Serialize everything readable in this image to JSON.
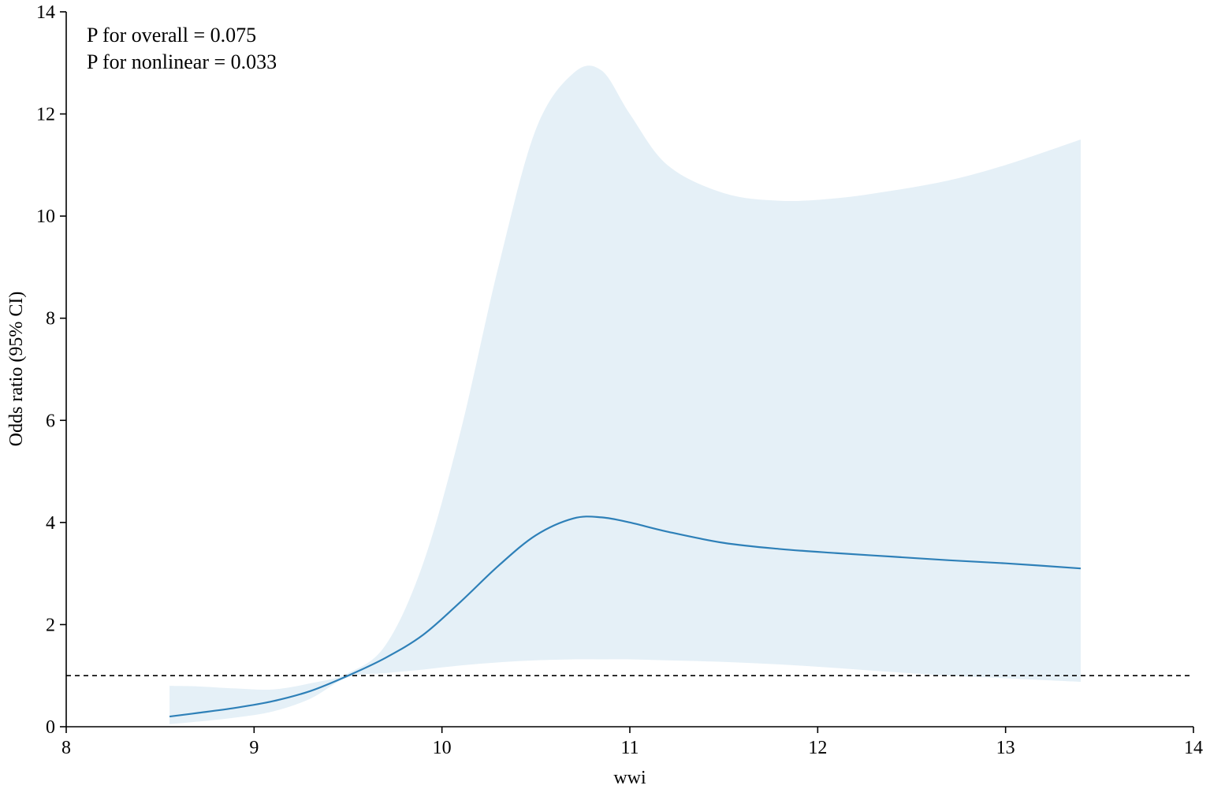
{
  "chart_data": {
    "type": "line",
    "title": "",
    "xlabel": "wwi",
    "ylabel": "Odds ratio (95% CI)",
    "xlim": [
      8,
      14
    ],
    "ylim": [
      0,
      14
    ],
    "x_ticks": [
      "8",
      "9",
      "10",
      "11",
      "12",
      "13",
      "14"
    ],
    "y_ticks": [
      "0",
      "2",
      "4",
      "6",
      "8",
      "10",
      "12",
      "14"
    ],
    "annotations": [
      "P for overall = 0.075",
      "P for nonlinear = 0.033"
    ],
    "reference_line": {
      "y": 1,
      "style": "dashed"
    },
    "grid": false,
    "legend": "none",
    "series": [
      {
        "x": [
          8.55,
          8.7,
          8.9,
          9.1,
          9.3,
          9.5,
          9.7,
          9.9,
          10.1,
          10.3,
          10.5,
          10.7,
          10.85,
          11.0,
          11.2,
          11.5,
          11.8,
          12.1,
          12.4,
          12.7,
          13.0,
          13.4
        ],
        "y": [
          0.2,
          0.27,
          0.37,
          0.5,
          0.7,
          1.0,
          1.35,
          1.8,
          2.45,
          3.15,
          3.75,
          4.08,
          4.1,
          4.0,
          3.82,
          3.6,
          3.48,
          3.4,
          3.33,
          3.26,
          3.2,
          3.1
        ],
        "ci_lower": [
          0.05,
          0.1,
          0.18,
          0.3,
          0.55,
          0.97,
          1.05,
          1.12,
          1.2,
          1.26,
          1.3,
          1.32,
          1.32,
          1.32,
          1.3,
          1.27,
          1.22,
          1.15,
          1.07,
          1.0,
          0.95,
          0.88
        ],
        "ci_upper": [
          0.8,
          0.79,
          0.75,
          0.73,
          0.85,
          1.05,
          1.6,
          3.2,
          5.8,
          9.0,
          11.7,
          12.8,
          12.85,
          12.0,
          11.0,
          10.45,
          10.3,
          10.35,
          10.5,
          10.7,
          11.0,
          11.5
        ]
      }
    ],
    "colors": {
      "line": "#2e80b8",
      "band": "#e5f0f7",
      "axis": "#000000",
      "reference": "#000000"
    }
  }
}
